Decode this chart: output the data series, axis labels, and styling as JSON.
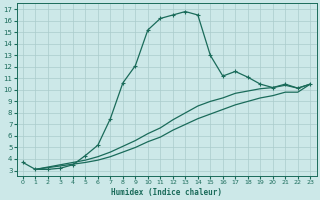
{
  "xlabel": "Humidex (Indice chaleur)",
  "background_color": "#cce8e8",
  "grid_color": "#aacccc",
  "line_color": "#1a6b5a",
  "xlim": [
    -0.5,
    23.5
  ],
  "ylim": [
    2.5,
    17.5
  ],
  "xticks": [
    0,
    1,
    2,
    3,
    4,
    5,
    6,
    7,
    8,
    9,
    10,
    11,
    12,
    13,
    14,
    15,
    16,
    17,
    18,
    19,
    20,
    21,
    22,
    23
  ],
  "yticks": [
    3,
    4,
    5,
    6,
    7,
    8,
    9,
    10,
    11,
    12,
    13,
    14,
    15,
    16,
    17
  ],
  "line1_x": [
    0,
    1,
    2,
    3,
    4,
    5,
    6,
    7,
    8,
    9,
    10,
    11,
    12,
    13,
    14,
    15,
    16,
    17,
    18,
    19,
    20,
    21,
    22,
    23
  ],
  "line1_y": [
    3.7,
    3.1,
    3.1,
    3.2,
    3.5,
    4.3,
    5.2,
    7.5,
    10.6,
    12.1,
    15.2,
    16.2,
    16.5,
    16.8,
    16.5,
    13.0,
    11.2,
    11.6,
    11.1,
    10.5,
    10.2,
    10.5,
    10.15,
    10.5
  ],
  "line2_x": [
    1,
    5,
    6,
    7,
    8,
    9,
    10,
    11,
    12,
    13,
    14,
    15,
    16,
    17,
    18,
    19,
    20,
    21,
    22,
    23
  ],
  "line2_y": [
    3.1,
    3.9,
    4.2,
    4.6,
    5.1,
    5.6,
    6.2,
    6.7,
    7.4,
    8.0,
    8.6,
    9.0,
    9.3,
    9.7,
    9.9,
    10.1,
    10.2,
    10.4,
    10.15,
    10.5
  ],
  "line3_x": [
    1,
    5,
    6,
    7,
    8,
    9,
    10,
    11,
    12,
    13,
    14,
    15,
    16,
    17,
    18,
    19,
    20,
    21,
    22,
    23
  ],
  "line3_y": [
    3.1,
    3.7,
    3.9,
    4.2,
    4.6,
    5.0,
    5.5,
    5.9,
    6.5,
    7.0,
    7.5,
    7.9,
    8.3,
    8.7,
    9.0,
    9.3,
    9.5,
    9.8,
    9.8,
    10.5
  ]
}
